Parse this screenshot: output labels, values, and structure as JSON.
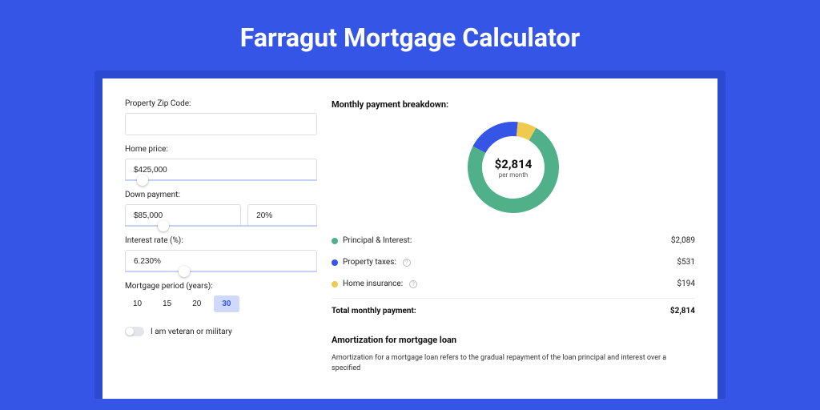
{
  "page": {
    "title": "Farragut Mortgage Calculator",
    "background_color": "#3555e6",
    "card_shadow_color": "#2b49d1"
  },
  "form": {
    "zip": {
      "label": "Property Zip Code:",
      "value": ""
    },
    "home_price": {
      "label": "Home price:",
      "value": "$425,000",
      "slider_percent": 9
    },
    "down_payment": {
      "label": "Down payment:",
      "value": "$85,000",
      "percent": "20%",
      "slider_percent": 20
    },
    "interest_rate": {
      "label": "Interest rate (%):",
      "value": "6.230%",
      "slider_percent": 31
    },
    "mortgage_period": {
      "label": "Mortgage period (years):",
      "options": [
        "10",
        "15",
        "20",
        "30"
      ],
      "selected": "30"
    },
    "veteran": {
      "label": "I am veteran or military",
      "checked": false
    }
  },
  "breakdown": {
    "title": "Monthly payment breakdown:",
    "center_amount": "$2,814",
    "center_per": "per month",
    "donut": {
      "segments": [
        {
          "color": "#4fb08a",
          "percent": 74.2
        },
        {
          "color": "#3555e6",
          "percent": 18.9
        },
        {
          "color": "#f0c94f",
          "percent": 6.9
        }
      ],
      "stroke_width": 18
    },
    "items": [
      {
        "label": "Principal & Interest:",
        "value": "$2,089",
        "color": "#4fb08a",
        "info": false
      },
      {
        "label": "Property taxes:",
        "value": "$531",
        "color": "#3555e6",
        "info": true
      },
      {
        "label": "Home insurance:",
        "value": "$194",
        "color": "#f0c94f",
        "info": true
      }
    ],
    "total": {
      "label": "Total monthly payment:",
      "value": "$2,814"
    }
  },
  "amort": {
    "title": "Amortization for mortgage loan",
    "text": "Amortization for a mortgage loan refers to the gradual repayment of the loan principal and interest over a specified"
  }
}
